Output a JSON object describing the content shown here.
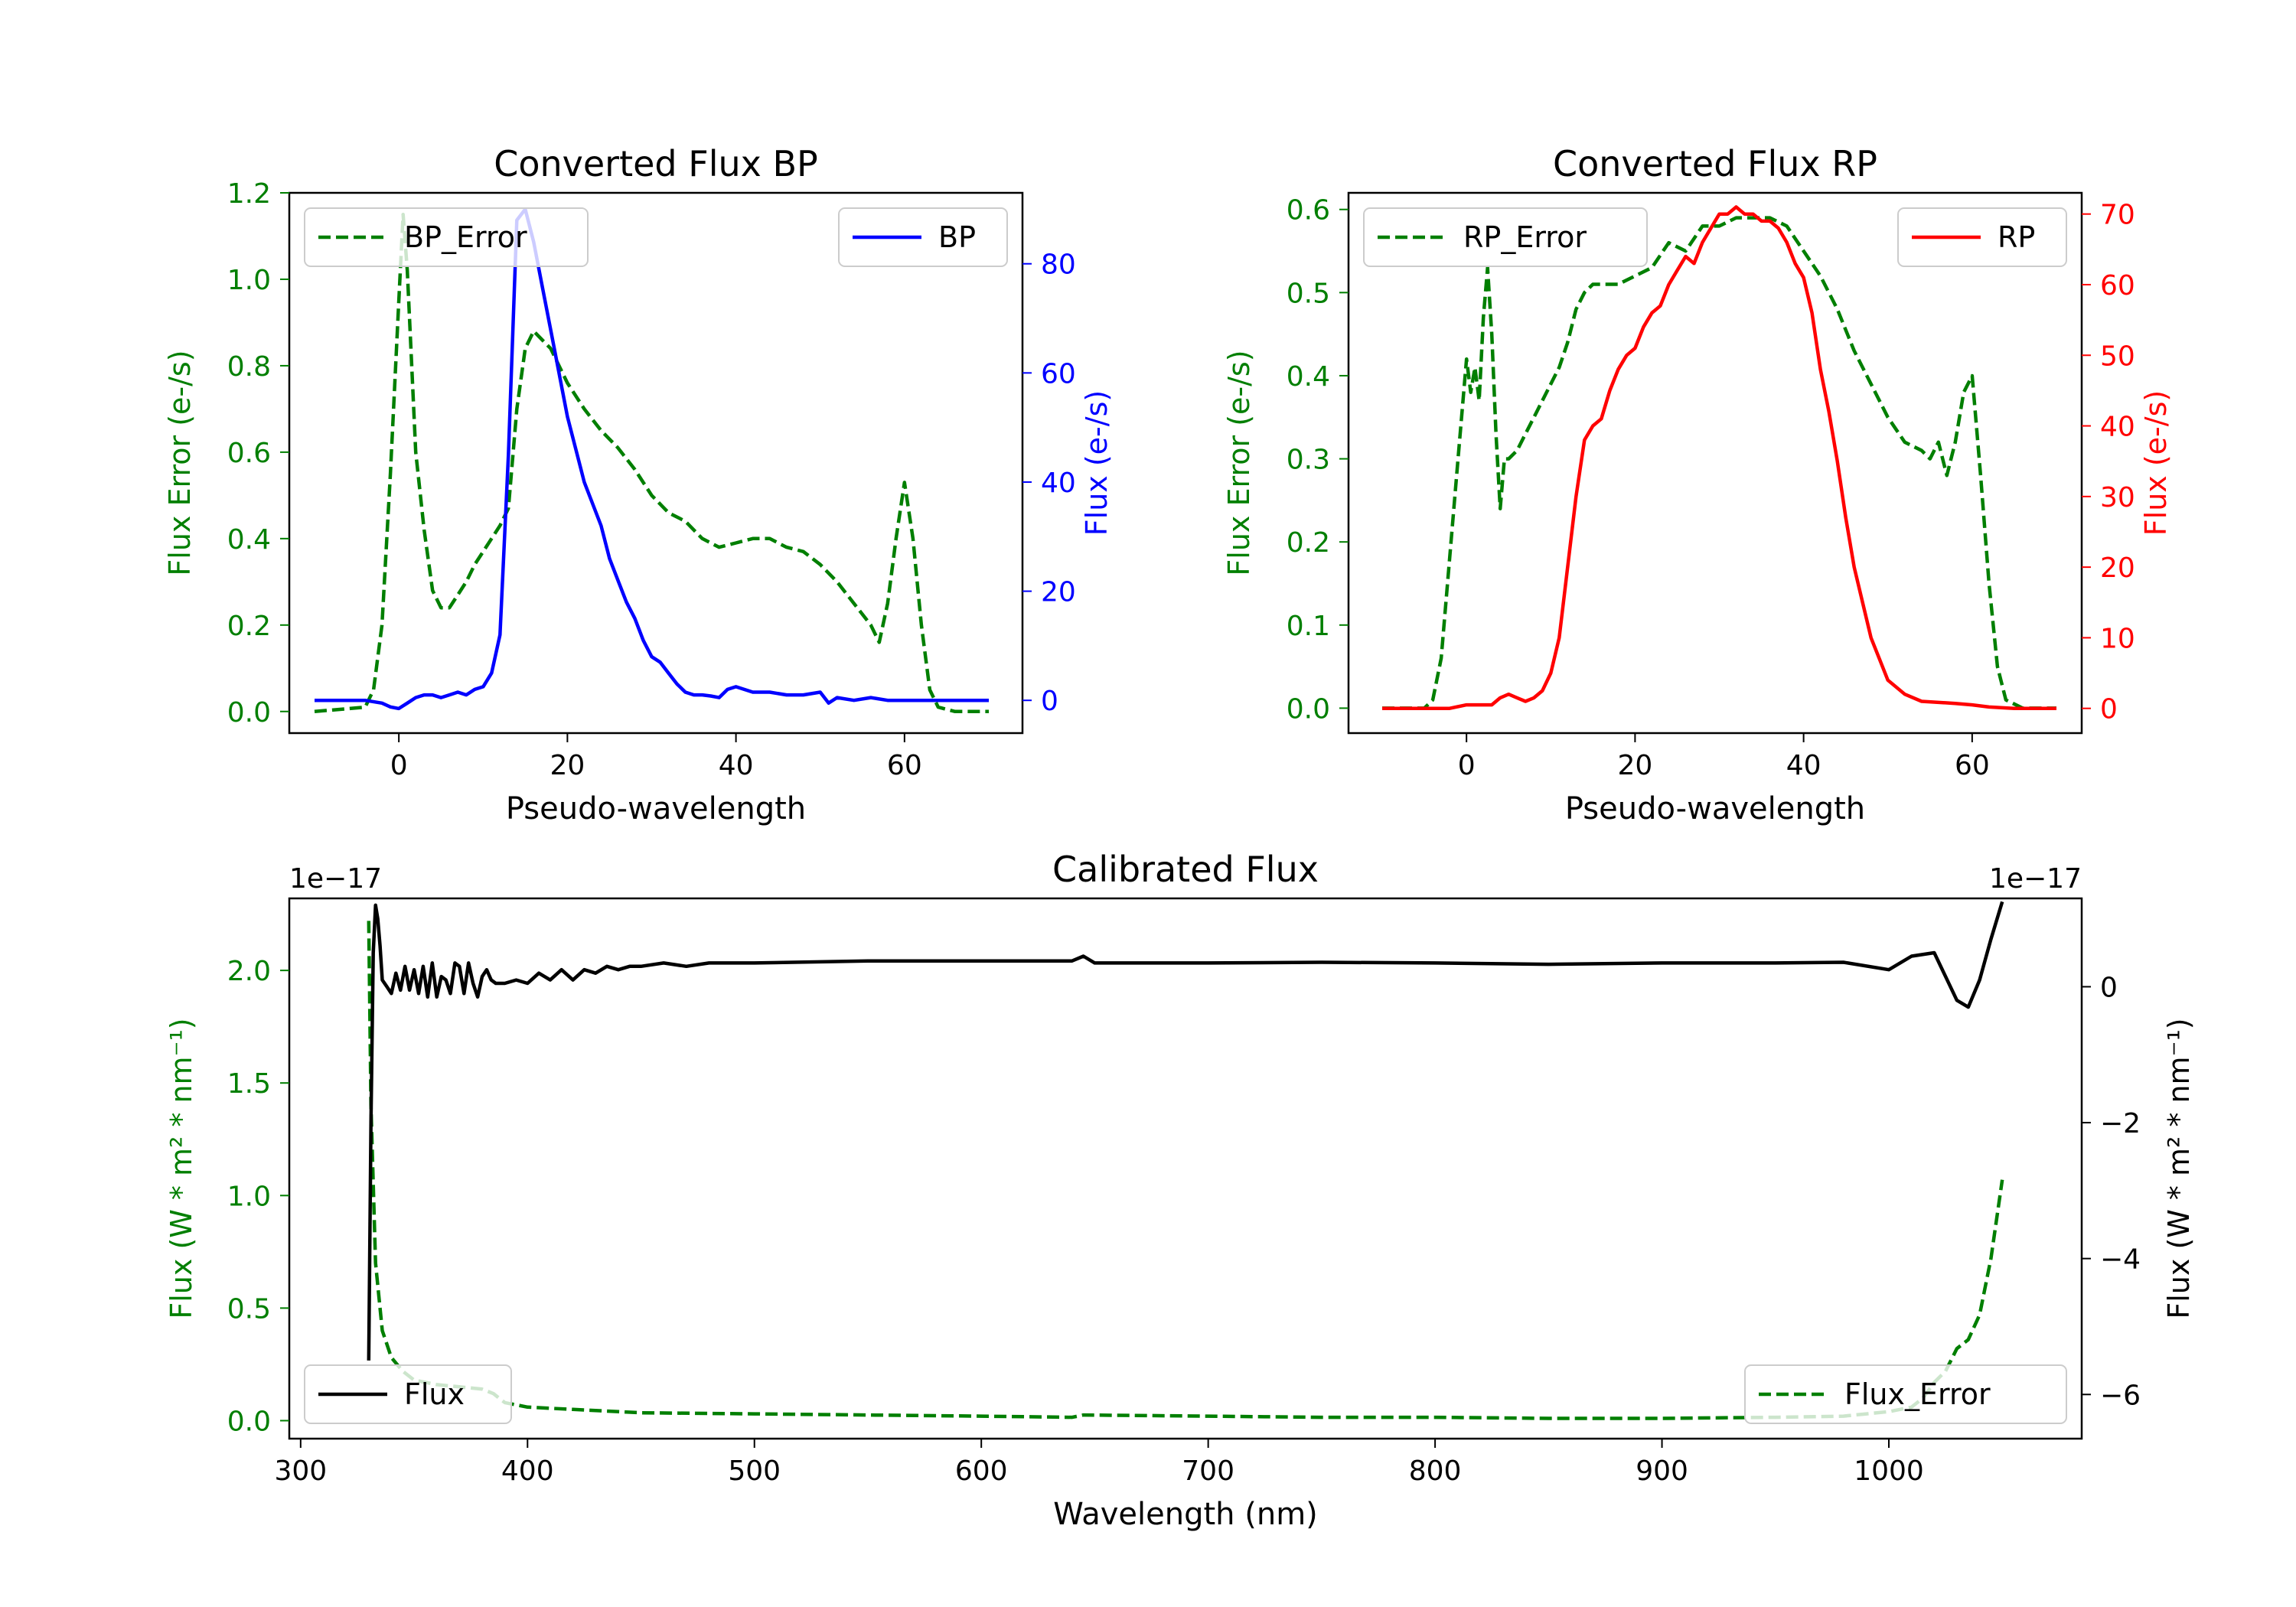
{
  "colors": {
    "green": "#007f00",
    "blue": "#0000ff",
    "red": "#ff0000",
    "black": "#000000",
    "legend_edge": "#cccccc"
  },
  "chart_data": [
    {
      "type": "line",
      "title": "Converted Flux BP",
      "xlabel": "Pseudo-wavelength",
      "xlim": [
        -13,
        74
      ],
      "xticks": [
        0,
        20,
        40,
        60
      ],
      "left_axis": {
        "label": "Flux Error (e-/s)",
        "color": "green",
        "ylim": [
          -0.05,
          1.2
        ],
        "ticks": [
          0.0,
          0.2,
          0.4,
          0.6,
          0.8,
          1.0,
          1.2
        ],
        "tick_labels": [
          "0.0",
          "0.2",
          "0.4",
          "0.6",
          "0.8",
          "1.0",
          "1.2"
        ]
      },
      "right_axis": {
        "label": "Flux (e-/s)",
        "color": "blue",
        "ylim": [
          -6,
          93
        ],
        "ticks": [
          0,
          20,
          40,
          60,
          80
        ],
        "tick_labels": [
          "0",
          "20",
          "40",
          "60",
          "80"
        ]
      },
      "series": [
        {
          "name": "BP_Error",
          "axis": "left",
          "color": "green",
          "dash": true,
          "legend_location": "upper left",
          "x": [
            -10,
            -4,
            -3,
            -2,
            -1,
            0,
            0.5,
            1,
            2,
            3,
            4,
            5,
            6,
            7,
            8,
            9,
            10,
            11,
            12,
            13,
            14,
            15,
            16,
            17,
            18,
            19,
            20,
            22,
            24,
            26,
            28,
            30,
            32,
            34,
            36,
            38,
            40,
            42,
            44,
            46,
            48,
            50,
            52,
            54,
            56,
            57,
            58,
            59,
            60,
            61,
            62,
            63,
            64,
            66,
            68,
            70
          ],
          "y": [
            0.0,
            0.01,
            0.05,
            0.2,
            0.55,
            0.95,
            1.15,
            1.02,
            0.6,
            0.42,
            0.28,
            0.24,
            0.24,
            0.27,
            0.3,
            0.34,
            0.37,
            0.4,
            0.43,
            0.47,
            0.7,
            0.84,
            0.88,
            0.86,
            0.84,
            0.8,
            0.76,
            0.7,
            0.65,
            0.61,
            0.56,
            0.5,
            0.46,
            0.44,
            0.4,
            0.38,
            0.39,
            0.4,
            0.4,
            0.38,
            0.37,
            0.34,
            0.3,
            0.25,
            0.2,
            0.16,
            0.25,
            0.4,
            0.53,
            0.4,
            0.2,
            0.05,
            0.01,
            0.0,
            0.0,
            0.0
          ]
        },
        {
          "name": "BP",
          "axis": "right",
          "color": "blue",
          "dash": false,
          "legend_location": "upper right",
          "x": [
            -10,
            -4,
            -2,
            -1,
            0,
            1,
            2,
            3,
            4,
            5,
            6,
            7,
            8,
            9,
            10,
            11,
            12,
            13,
            14,
            15,
            16,
            17,
            18,
            19,
            20,
            21,
            22,
            23,
            24,
            25,
            26,
            27,
            28,
            29,
            30,
            31,
            32,
            33,
            34,
            35,
            36,
            37,
            38,
            39,
            40,
            42,
            44,
            46,
            48,
            50,
            51,
            52,
            54,
            56,
            58,
            60,
            65,
            70
          ],
          "y": [
            0,
            0,
            -0.5,
            -1.2,
            -1.5,
            -0.5,
            0.5,
            1,
            1,
            0.5,
            1,
            1.5,
            1,
            2,
            2.5,
            5,
            12,
            45,
            88,
            90,
            84,
            76,
            68,
            60,
            52,
            46,
            40,
            36,
            32,
            26,
            22,
            18,
            15,
            11,
            8,
            7,
            5,
            3,
            1.5,
            1,
            1,
            0.8,
            0.5,
            2,
            2.5,
            1.5,
            1.5,
            1,
            1,
            1.5,
            -0.5,
            0.5,
            0,
            0.5,
            0,
            0,
            0,
            0
          ]
        }
      ]
    },
    {
      "type": "line",
      "title": "Converted Flux RP",
      "xlabel": "Pseudo-wavelength",
      "xlim": [
        -14,
        73
      ],
      "xticks": [
        0,
        20,
        40,
        60
      ],
      "left_axis": {
        "label": "Flux Error (e-/s)",
        "color": "green",
        "ylim": [
          -0.03,
          0.62
        ],
        "ticks": [
          0.0,
          0.1,
          0.2,
          0.3,
          0.4,
          0.5,
          0.6
        ],
        "tick_labels": [
          "0.0",
          "0.1",
          "0.2",
          "0.3",
          "0.4",
          "0.5",
          "0.6"
        ]
      },
      "right_axis": {
        "label": "Flux (e-/s)",
        "color": "red",
        "ylim": [
          -3.5,
          73
        ],
        "ticks": [
          0,
          10,
          20,
          30,
          40,
          50,
          60,
          70
        ],
        "tick_labels": [
          "0",
          "10",
          "20",
          "30",
          "40",
          "50",
          "60",
          "70"
        ]
      },
      "series": [
        {
          "name": "RP_Error",
          "axis": "left",
          "color": "green",
          "dash": true,
          "legend_location": "upper left",
          "x": [
            -10,
            -5,
            -4,
            -3,
            -2,
            -1,
            0,
            0.5,
            1,
            1.5,
            2,
            2.5,
            3,
            3.5,
            4,
            4.5,
            5,
            6,
            7,
            8,
            9,
            10,
            11,
            12,
            13,
            14,
            15,
            16,
            17,
            18,
            20,
            22,
            24,
            26,
            28,
            30,
            32,
            34,
            36,
            38,
            40,
            42,
            44,
            46,
            48,
            50,
            52,
            54,
            55,
            56,
            57,
            58,
            59,
            60,
            61,
            62,
            63,
            64,
            66,
            68,
            70
          ],
          "y": [
            0.0,
            0.0,
            0.01,
            0.06,
            0.18,
            0.3,
            0.42,
            0.38,
            0.41,
            0.37,
            0.47,
            0.53,
            0.45,
            0.33,
            0.24,
            0.3,
            0.3,
            0.31,
            0.33,
            0.35,
            0.37,
            0.39,
            0.41,
            0.44,
            0.48,
            0.5,
            0.51,
            0.51,
            0.51,
            0.51,
            0.52,
            0.53,
            0.56,
            0.55,
            0.58,
            0.58,
            0.59,
            0.59,
            0.59,
            0.58,
            0.55,
            0.52,
            0.48,
            0.43,
            0.39,
            0.35,
            0.32,
            0.31,
            0.3,
            0.32,
            0.28,
            0.32,
            0.38,
            0.4,
            0.28,
            0.15,
            0.05,
            0.01,
            0.0,
            0.0,
            0.0
          ]
        },
        {
          "name": "RP",
          "axis": "right",
          "color": "red",
          "dash": false,
          "legend_location": "upper right",
          "x": [
            -10,
            -4,
            -2,
            0,
            1,
            2,
            3,
            4,
            5,
            6,
            7,
            8,
            9,
            10,
            11,
            12,
            13,
            14,
            15,
            16,
            17,
            18,
            19,
            20,
            21,
            22,
            23,
            24,
            25,
            26,
            27,
            28,
            29,
            30,
            31,
            32,
            33,
            34,
            35,
            36,
            37,
            38,
            39,
            40,
            41,
            42,
            43,
            44,
            45,
            46,
            47,
            48,
            49,
            50,
            52,
            54,
            58,
            60,
            62,
            65,
            70
          ],
          "y": [
            0,
            0,
            0,
            0.5,
            0.5,
            0.5,
            0.5,
            1.5,
            2,
            1.5,
            1,
            1.5,
            2.5,
            5,
            10,
            20,
            30,
            38,
            40,
            41,
            45,
            48,
            50,
            51,
            54,
            56,
            57,
            60,
            62,
            64,
            63,
            66,
            68,
            70,
            70,
            71,
            70,
            70,
            69,
            69,
            68,
            66,
            63,
            61,
            56,
            48,
            42,
            35,
            27,
            20,
            15,
            10,
            7,
            4,
            2,
            1,
            0.7,
            0.5,
            0.2,
            0,
            0
          ]
        }
      ]
    },
    {
      "type": "line",
      "title": "Calibrated Flux",
      "xlabel": "Wavelength (nm)",
      "xlim": [
        295,
        1085
      ],
      "xticks": [
        300,
        400,
        500,
        600,
        700,
        800,
        900,
        1000
      ],
      "left_axis": {
        "label": "Flux (W * m² * nm⁻¹)",
        "color": "green",
        "offset_text": "1e−17",
        "ylim": [
          -0.08,
          2.32
        ],
        "ticks": [
          0.0,
          0.5,
          1.0,
          1.5,
          2.0
        ],
        "tick_labels": [
          "0.0",
          "0.5",
          "1.0",
          "1.5",
          "2.0"
        ]
      },
      "right_axis": {
        "label": "Flux (W * m² * nm⁻¹)",
        "color": "black",
        "offset_text": "1e−17",
        "ylim": [
          -6.65,
          1.3
        ],
        "ticks": [
          -6,
          -4,
          -2,
          0
        ],
        "tick_labels": [
          "−6",
          "−4",
          "−2",
          "0"
        ]
      },
      "series": [
        {
          "name": "Flux_Error",
          "axis": "left",
          "color": "green",
          "dash": true,
          "legend_location": "lower right",
          "x": [
            330,
            331,
            333,
            336,
            340,
            345,
            350,
            360,
            370,
            380,
            385,
            390,
            400,
            420,
            450,
            500,
            550,
            600,
            640,
            645,
            700,
            750,
            800,
            850,
            900,
            950,
            980,
            1000,
            1010,
            1015,
            1020,
            1025,
            1030,
            1035,
            1040,
            1045,
            1050
          ],
          "y": [
            2.22,
            1.4,
            0.7,
            0.4,
            0.28,
            0.22,
            0.18,
            0.16,
            0.15,
            0.14,
            0.12,
            0.08,
            0.06,
            0.05,
            0.035,
            0.03,
            0.025,
            0.02,
            0.015,
            0.025,
            0.02,
            0.015,
            0.015,
            0.01,
            0.01,
            0.015,
            0.02,
            0.04,
            0.06,
            0.1,
            0.17,
            0.22,
            0.32,
            0.36,
            0.47,
            0.72,
            1.07
          ]
        },
        {
          "name": "Flux",
          "axis": "right",
          "color": "black",
          "dash": false,
          "legend_location": "lower left",
          "x": [
            330,
            331,
            332,
            333,
            334,
            335,
            336,
            338,
            340,
            342,
            344,
            346,
            348,
            350,
            352,
            354,
            356,
            358,
            360,
            362,
            364,
            366,
            368,
            370,
            372,
            374,
            376,
            378,
            380,
            382,
            384,
            386,
            390,
            395,
            400,
            405,
            410,
            415,
            420,
            425,
            430,
            435,
            440,
            445,
            450,
            460,
            470,
            480,
            500,
            550,
            600,
            640,
            645,
            650,
            700,
            750,
            800,
            850,
            900,
            950,
            980,
            1000,
            1010,
            1020,
            1030,
            1035,
            1040,
            1045,
            1050
          ],
          "y": [
            -5.5,
            -2,
            0.5,
            1.2,
            1,
            0.6,
            0.1,
            0.0,
            -0.1,
            0.2,
            -0.05,
            0.3,
            -0.05,
            0.25,
            -0.1,
            0.3,
            -0.15,
            0.35,
            -0.15,
            0.15,
            0.1,
            -0.1,
            0.35,
            0.3,
            -0.1,
            0.35,
            0.05,
            -0.15,
            0.15,
            0.25,
            0.1,
            0.05,
            0.05,
            0.1,
            0.05,
            0.2,
            0.1,
            0.25,
            0.1,
            0.25,
            0.2,
            0.3,
            0.25,
            0.3,
            0.3,
            0.35,
            0.3,
            0.35,
            0.35,
            0.38,
            0.38,
            0.38,
            0.45,
            0.35,
            0.35,
            0.36,
            0.35,
            0.33,
            0.35,
            0.35,
            0.36,
            0.25,
            0.45,
            0.5,
            -0.2,
            -0.3,
            0.1,
            0.7,
            1.25
          ]
        }
      ]
    }
  ]
}
